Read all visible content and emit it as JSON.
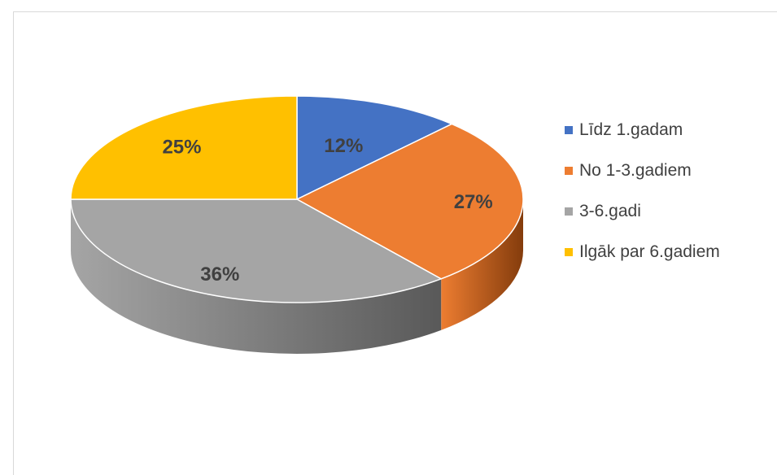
{
  "chart_data": {
    "type": "pie",
    "title": "",
    "categories": [
      "Līdz 1.gadam",
      "No 1-3.gadiem",
      "3-6.gadi",
      "Ilgāk par 6.gadiem"
    ],
    "values": [
      12,
      27,
      36,
      25
    ],
    "labels": [
      "12%",
      "27%",
      "36%",
      "25%"
    ],
    "colors": [
      "#4472c4",
      "#ed7d31",
      "#a5a5a5",
      "#ffc000"
    ],
    "style": "3d",
    "legend": "right"
  }
}
